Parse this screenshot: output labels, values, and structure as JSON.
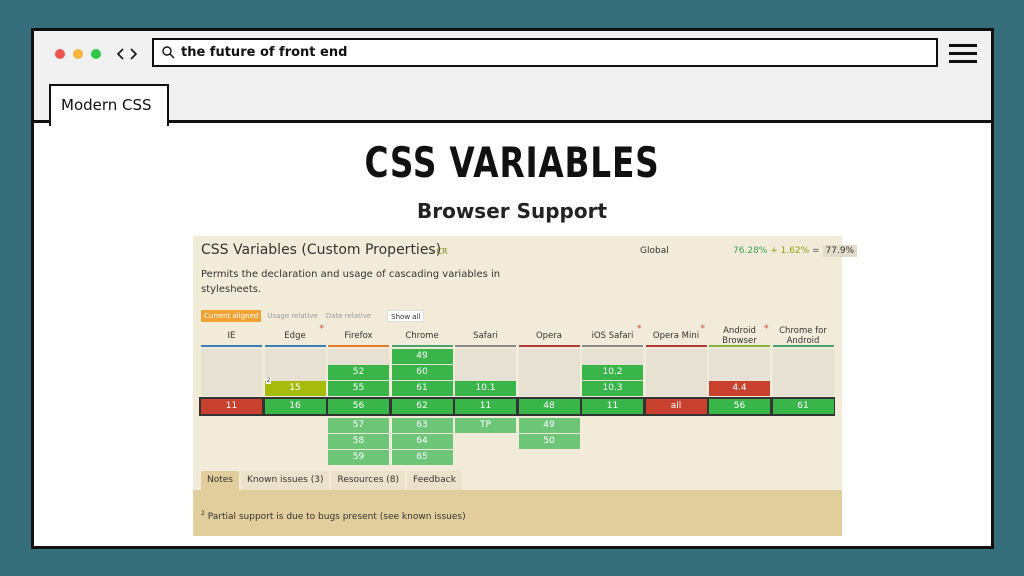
{
  "browser": {
    "url": "the future of front end",
    "tab": "Modern CSS"
  },
  "slide": {
    "title": "CSS VARIABLES",
    "subtitle": "Browser Support"
  },
  "panel": {
    "title": "CSS Variables (Custom Properties)",
    "badge": "- CR",
    "global": "Global",
    "usage": [
      "76.28%",
      "+ 1.62%",
      "=",
      "77.9%"
    ],
    "description": [
      "Permits the declaration and usage of cascading variables in",
      "stylesheets."
    ],
    "filters": [
      "Current aligned",
      "Usage relative",
      "Date relative",
      "Show all"
    ],
    "columns": [
      {
        "name": "IE",
        "line": "#3d7fb5",
        "past": [
          null,
          null,
          null
        ],
        "current": {
          "label": "11",
          "color": "#c8412f"
        },
        "future": [
          null,
          null,
          null
        ]
      },
      {
        "name": "Edge",
        "line": "#3d7fb5",
        "flag": "*",
        "past": [
          null,
          null,
          {
            "label": "15",
            "color": "#a6bc0c",
            "note": "2"
          }
        ],
        "current": {
          "label": "16",
          "color": "#39b54a"
        },
        "future": [
          null,
          null,
          null
        ]
      },
      {
        "name": "Firefox",
        "line": "#e07b2a",
        "past": [
          null,
          {
            "label": "52",
            "color": "#39b54a"
          },
          {
            "label": "55",
            "color": "#39b54a"
          }
        ],
        "current": {
          "label": "56",
          "color": "#39b54a"
        },
        "future": [
          {
            "label": "57",
            "color": "#6dc678"
          },
          {
            "label": "58",
            "color": "#6dc678"
          },
          {
            "label": "59",
            "color": "#6dc678"
          }
        ]
      },
      {
        "name": "Chrome",
        "line": "#4aa36c",
        "past": [
          {
            "label": "49",
            "color": "#39b54a"
          },
          {
            "label": "60",
            "color": "#39b54a"
          },
          {
            "label": "61",
            "color": "#39b54a"
          }
        ],
        "current": {
          "label": "62",
          "color": "#39b54a"
        },
        "future": [
          {
            "label": "63",
            "color": "#6dc678"
          },
          {
            "label": "64",
            "color": "#6dc678"
          },
          {
            "label": "65",
            "color": "#6dc678"
          }
        ]
      },
      {
        "name": "Safari",
        "line": "#8a8a8a",
        "past": [
          null,
          null,
          {
            "label": "10.1",
            "color": "#39b54a"
          }
        ],
        "current": {
          "label": "11",
          "color": "#39b54a"
        },
        "future": [
          {
            "label": "TP",
            "color": "#6dc678"
          },
          null,
          null
        ]
      },
      {
        "name": "Opera",
        "line": "#b03a35",
        "past": [
          null,
          null,
          null
        ],
        "current": {
          "label": "48",
          "color": "#39b54a"
        },
        "future": [
          {
            "label": "49",
            "color": "#6dc678"
          },
          {
            "label": "50",
            "color": "#6dc678"
          },
          null
        ]
      },
      {
        "name": "iOS Safari",
        "line": "#8a8a8a",
        "flag": "*",
        "past": [
          null,
          {
            "label": "10.2",
            "color": "#39b54a"
          },
          {
            "label": "10.3",
            "color": "#39b54a"
          }
        ],
        "current": {
          "label": "11",
          "color": "#39b54a"
        },
        "future": [
          null,
          null,
          null
        ]
      },
      {
        "name": "Opera Mini",
        "line": "#b03a35",
        "flag": "*",
        "past": [
          null,
          null,
          null
        ],
        "current": {
          "label": "all",
          "color": "#c8412f"
        },
        "future": [
          null,
          null,
          null
        ]
      },
      {
        "name": "Android Browser",
        "line": "#86b33c",
        "flag": "*",
        "past": [
          null,
          null,
          {
            "label": "4.4",
            "color": "#c8412f"
          }
        ],
        "current": {
          "label": "56",
          "color": "#39b54a"
        },
        "future": [
          null,
          null,
          null
        ]
      },
      {
        "name": "Chrome for Android",
        "line": "#4aa36c",
        "past": [
          null,
          null,
          null
        ],
        "current": {
          "label": "61",
          "color": "#39b54a"
        },
        "future": [
          null,
          null,
          null
        ]
      }
    ],
    "tabs": [
      "Notes",
      "Known issues (3)",
      "Resources (8)",
      "Feedback"
    ],
    "note": {
      "number": "2",
      "text": "Partial support is due to bugs present (see known issues)"
    }
  }
}
